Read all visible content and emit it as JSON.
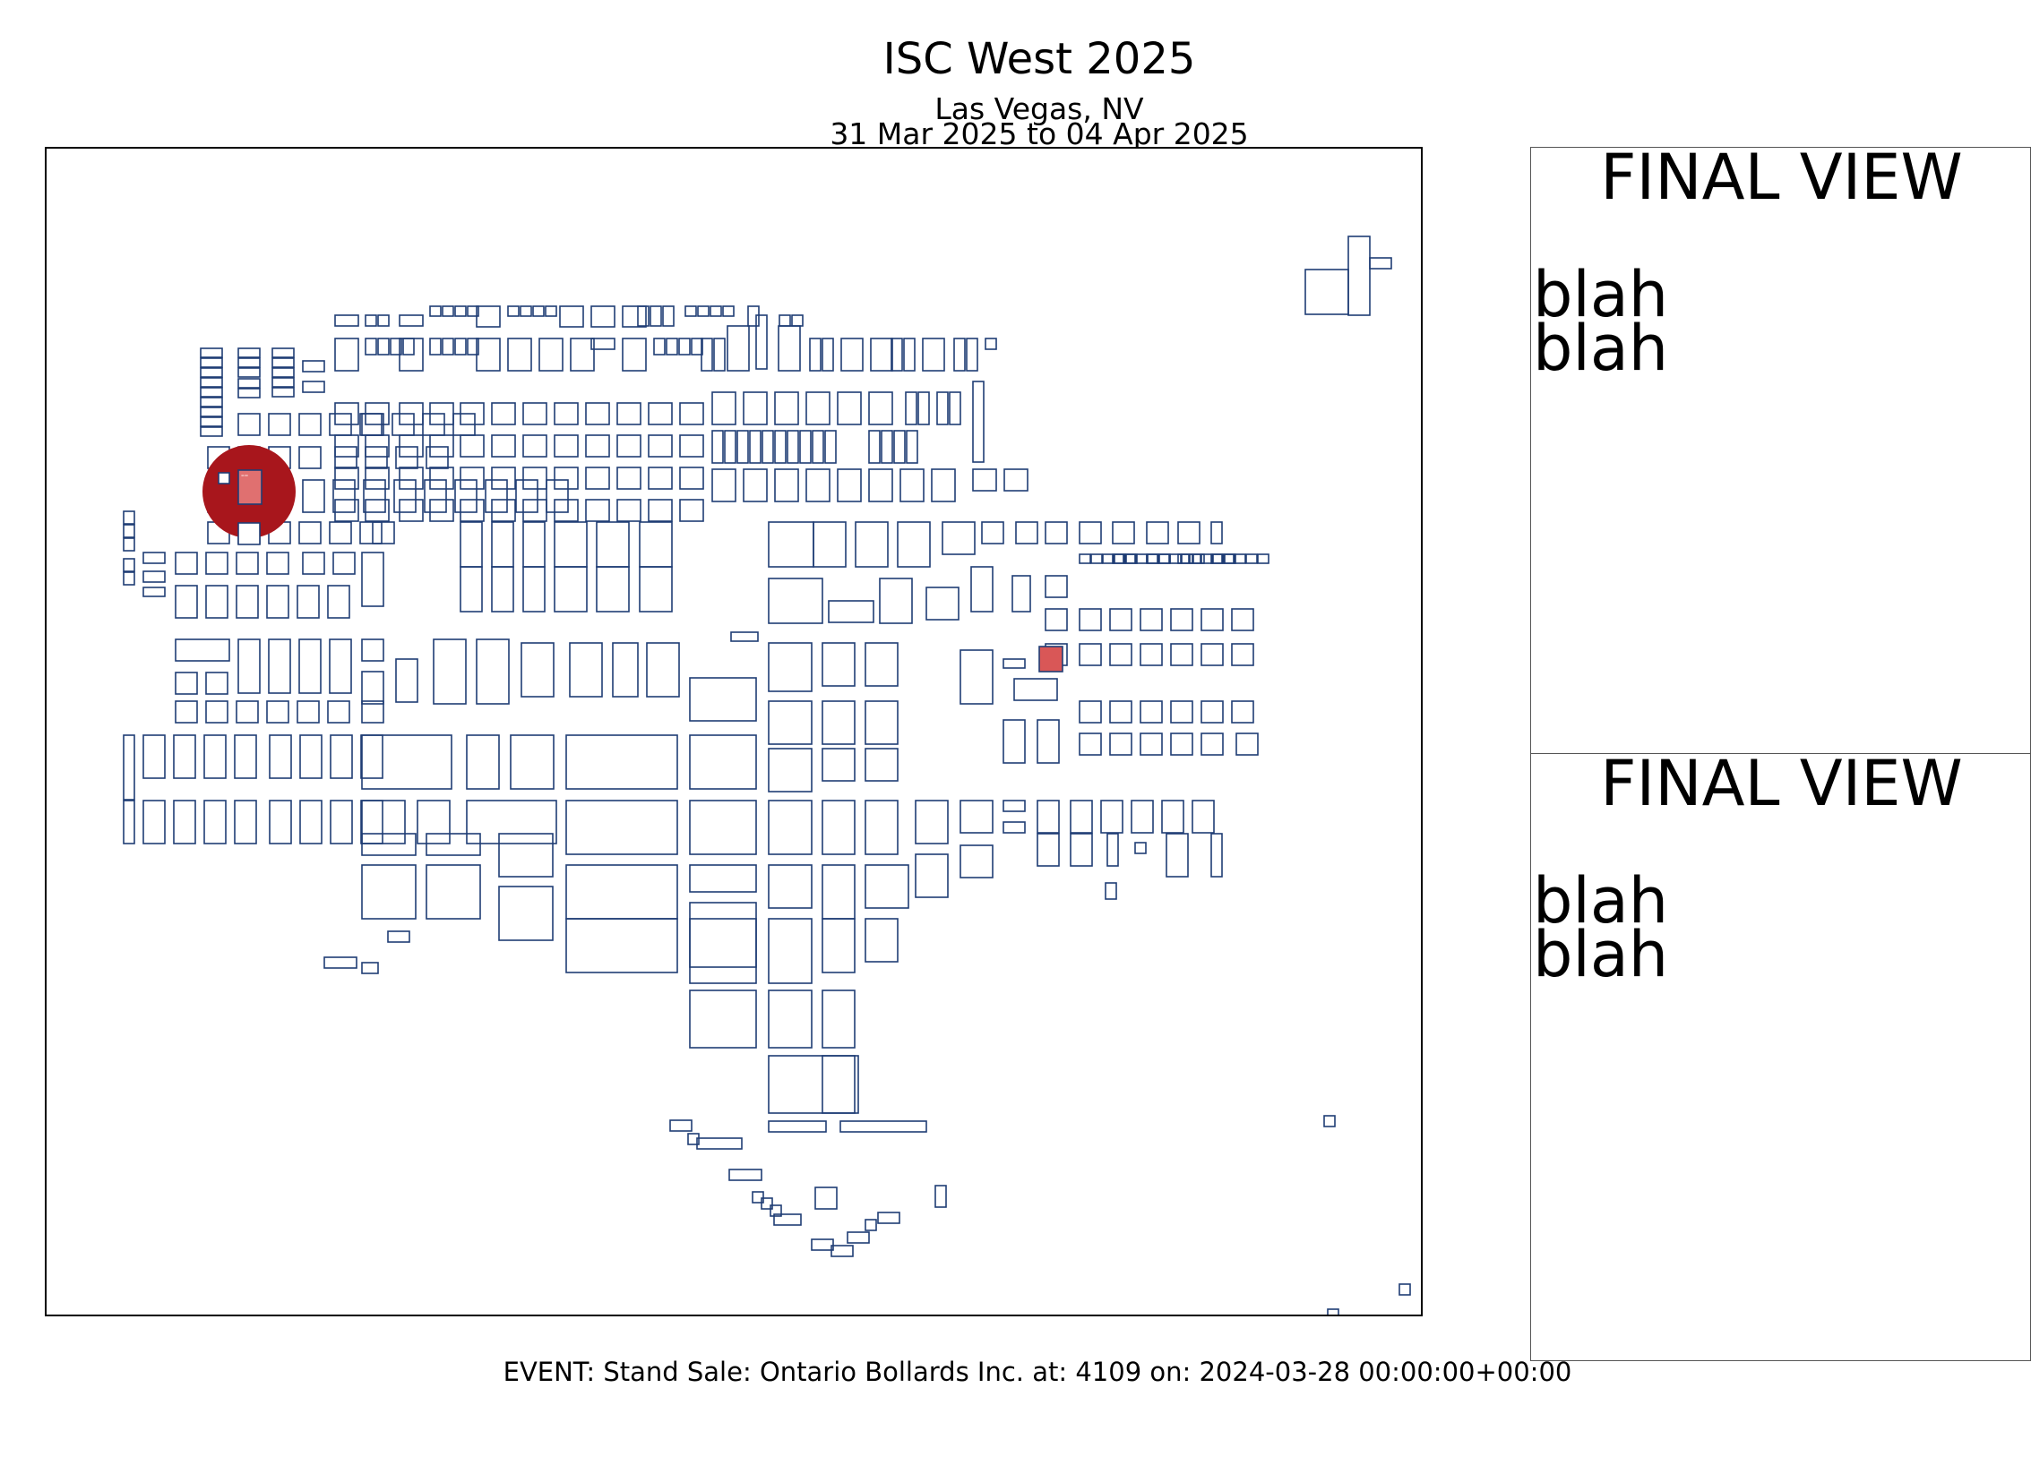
{
  "header": {
    "title": "ISC West 2025",
    "location": "Las Vegas, NV",
    "dates": "31 Mar 2025 to 04 Apr 2025"
  },
  "map": {
    "booth_stroke": "#1f3d75",
    "highlight_circle_color": "#a8161c",
    "highlight_booth_color": "#e07070",
    "sale_booth_color": "#d95757",
    "highlight_booth_label": "4109"
  },
  "panels": [
    {
      "title": "FINAL VIEW",
      "lines": [
        "blah",
        "blah"
      ]
    },
    {
      "title": "FINAL VIEW",
      "lines": [
        "blah",
        "blah"
      ]
    }
  ],
  "event": {
    "text": "EVENT: Stand Sale: Ontario Bollards Inc. at: 4109 on: 2024-03-28 00:00:00+00:00"
  }
}
